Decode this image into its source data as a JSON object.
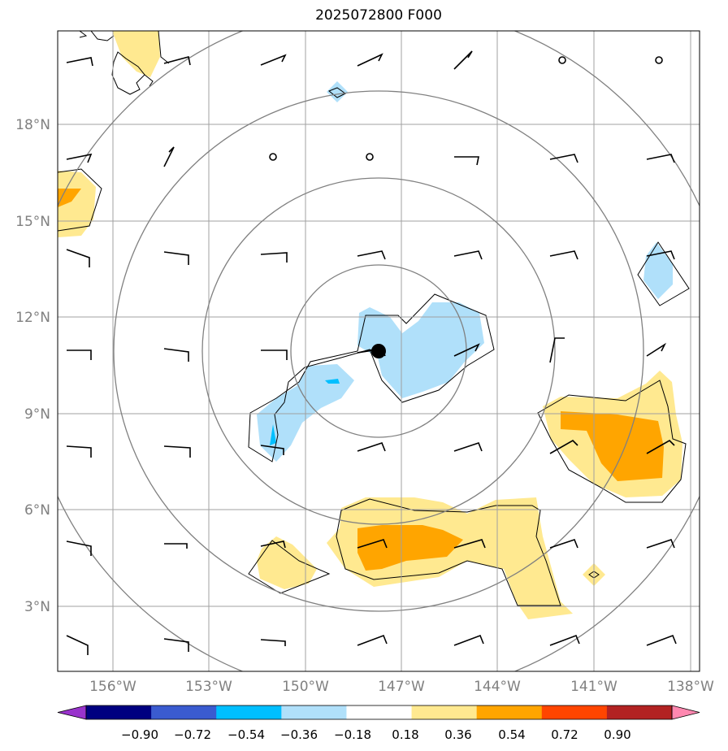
{
  "title": "2025072800 F000",
  "axes": {
    "lat_labels": [
      "18°N",
      "15°N",
      "12°N",
      "9°N",
      "6°N",
      "3°N"
    ],
    "lon_labels": [
      "156°W",
      "153°W",
      "150°W",
      "147°W",
      "144°W",
      "141°W",
      "138°W"
    ]
  },
  "colorbar": {
    "labels": [
      "−0.90",
      "−0.72",
      "−0.54",
      "−0.36",
      "−0.18",
      "0.18",
      "0.36",
      "0.54",
      "0.72",
      "0.90"
    ],
    "colors": [
      "#9933cc",
      "#000080",
      "#3a5bd0",
      "#00bfff",
      "#b0e0fa",
      "#ffffff",
      "#ffe990",
      "#ffa500",
      "#ff4500",
      "#b22222",
      "#ff88b0"
    ]
  },
  "colors": {
    "gridline": "#a0a0a0",
    "range_ring": "#808080",
    "contour": "#000000",
    "wind_barb": "#000000"
  }
}
